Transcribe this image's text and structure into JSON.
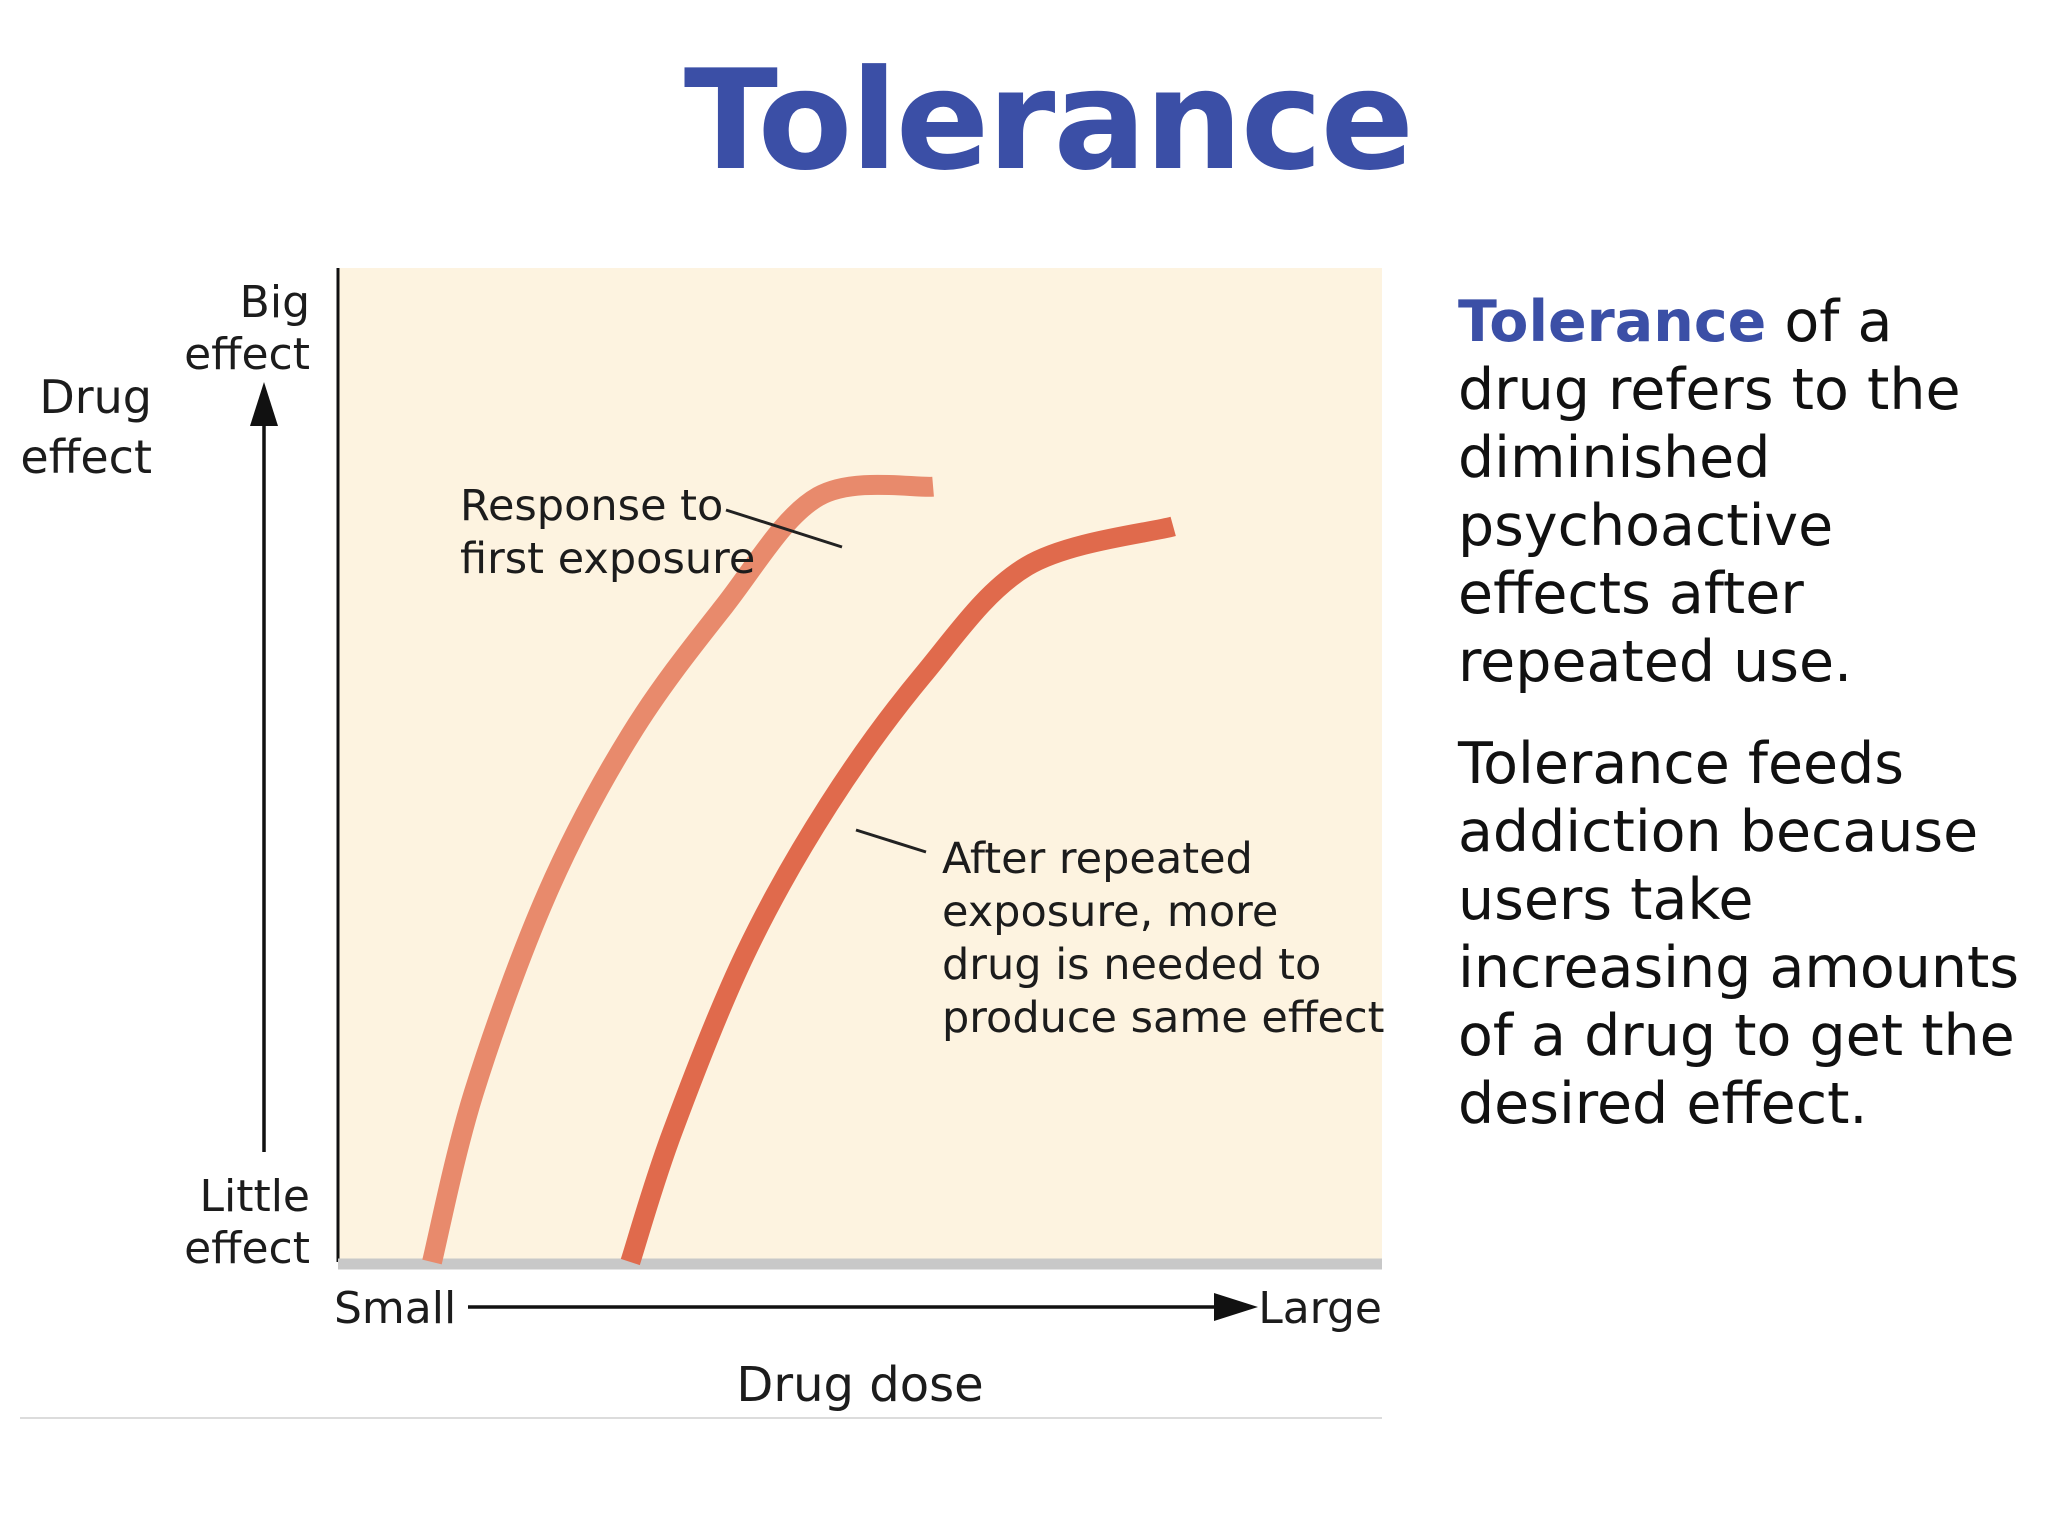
{
  "slide": {
    "title": "Tolerance",
    "paragraph1_term": "Tolerance",
    "paragraph1_rest": " of a drug refers to the diminished psychoactive effects after repeated use.",
    "paragraph2": "Tolerance feeds addiction because users take increasing amounts of a drug to get the desired effect."
  },
  "colors": {
    "title": "#3b4fa6",
    "plot_background": "#fdf3e0",
    "first_exposure_curve": "#e88a6c",
    "repeated_exposure_curve": "#e06a4c",
    "axis": "#111111",
    "baseline": "#c8c8c8"
  },
  "chart_data": {
    "type": "line",
    "title": "",
    "ylabel_line1": "Drug",
    "ylabel_line2": "effect",
    "xlabel": "Drug dose",
    "y_top_line1": "Big",
    "y_top_line2": "effect",
    "y_bottom_line1": "Little",
    "y_bottom_line2": "effect",
    "x_left": "Small",
    "x_right": "Large",
    "xlim": [
      0,
      100
    ],
    "ylim": [
      0,
      100
    ],
    "grid": false,
    "series": [
      {
        "label_line1": "Response to",
        "label_line2": "first exposure",
        "x": [
          9,
          13,
          20,
          28,
          37,
          46,
          57
        ],
        "y": [
          0,
          17,
          37,
          53,
          66,
          77,
          78
        ]
      },
      {
        "label_line1": "After repeated",
        "label_line2": "exposure, more",
        "label_line3": "drug is needed to",
        "label_line4": "produce same effect",
        "x": [
          28,
          32,
          39,
          47,
          56,
          66,
          80
        ],
        "y": [
          0,
          13,
          31,
          46,
          59,
          70,
          74
        ]
      }
    ]
  }
}
